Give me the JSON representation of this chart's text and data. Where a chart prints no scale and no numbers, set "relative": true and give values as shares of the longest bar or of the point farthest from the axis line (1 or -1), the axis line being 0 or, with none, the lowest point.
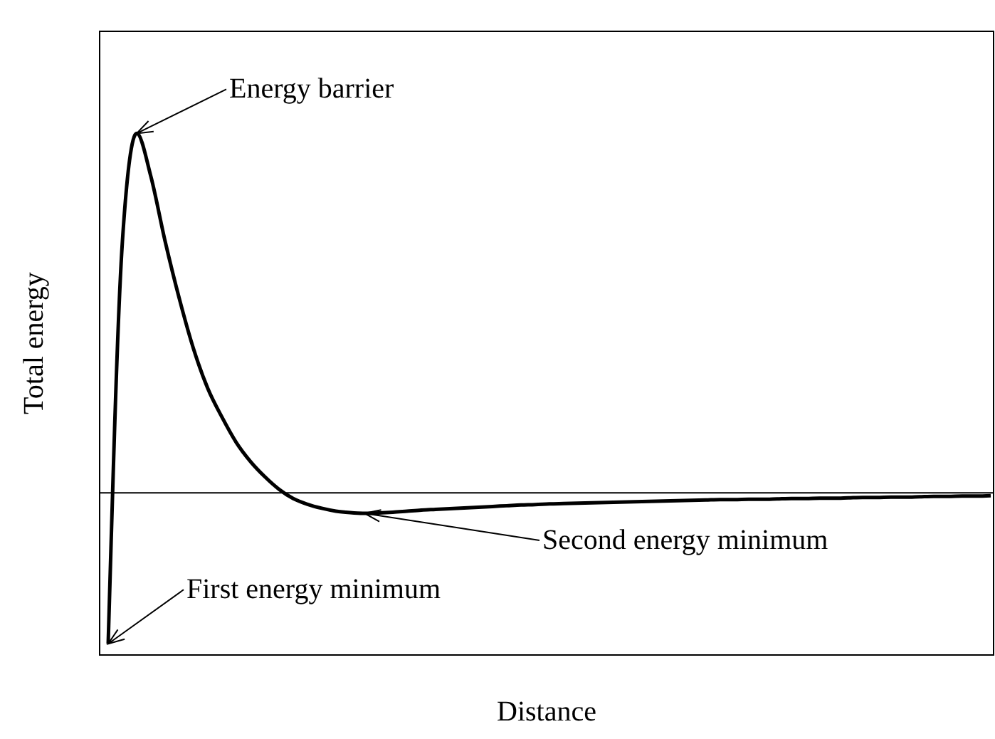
{
  "chart_data": {
    "type": "line",
    "relative": true,
    "xlabel": "Distance",
    "ylabel": "Total energy",
    "categories": [
      null,
      null,
      null,
      null,
      null,
      null,
      null,
      null,
      null,
      null,
      null,
      null,
      null,
      null,
      null,
      null,
      null,
      null,
      null,
      null,
      null,
      null,
      null,
      null,
      null,
      null,
      null,
      null,
      null,
      null,
      null,
      null,
      null,
      null,
      null,
      null,
      null,
      null,
      null,
      null,
      null,
      null,
      null,
      null,
      null,
      null,
      null,
      null,
      null,
      null,
      null,
      null,
      null,
      null,
      null,
      null,
      null,
      null,
      null,
      null,
      null,
      null,
      null
    ],
    "series": [
      {
        "color": "#000000",
        "values": [
          -0.42,
          0.7,
          1,
          0.88,
          0.7,
          0.54,
          0.4,
          0.29,
          0.21,
          0.14,
          0.087,
          0.045,
          0.01,
          -0.016,
          -0.032,
          -0.043,
          -0.051,
          -0.055,
          -0.057,
          -0.056,
          -0.054,
          -0.051,
          -0.048,
          -0.046,
          -0.044,
          -0.042,
          -0.04,
          -0.038,
          -0.036,
          -0.034,
          -0.033,
          -0.031,
          -0.03,
          -0.029,
          -0.028,
          -0.027,
          -0.026,
          -0.025,
          -0.024,
          -0.023,
          -0.022,
          -0.021,
          -0.02,
          -0.019,
          -0.019,
          -0.018,
          -0.018,
          -0.017,
          -0.016,
          -0.016,
          -0.015,
          -0.015,
          -0.014,
          -0.013,
          -0.013,
          -0.012,
          -0.012,
          -0.011,
          -0.01,
          -0.01,
          -0.009,
          -0.009,
          -0.008
        ]
      }
    ],
    "annotations": [
      "Energy barrier",
      "Second energy minimum",
      "First energy minimum"
    ],
    "marker": "none",
    "line_style": "solid"
  }
}
